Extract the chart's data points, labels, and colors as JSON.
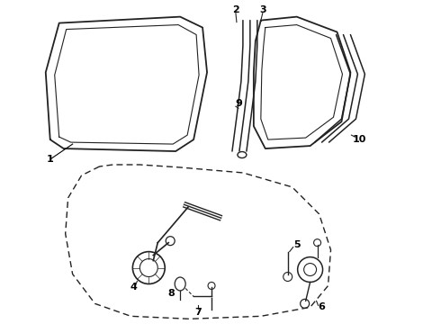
{
  "bg_color": "#ffffff",
  "line_color": "#222222",
  "label_color": "#000000"
}
